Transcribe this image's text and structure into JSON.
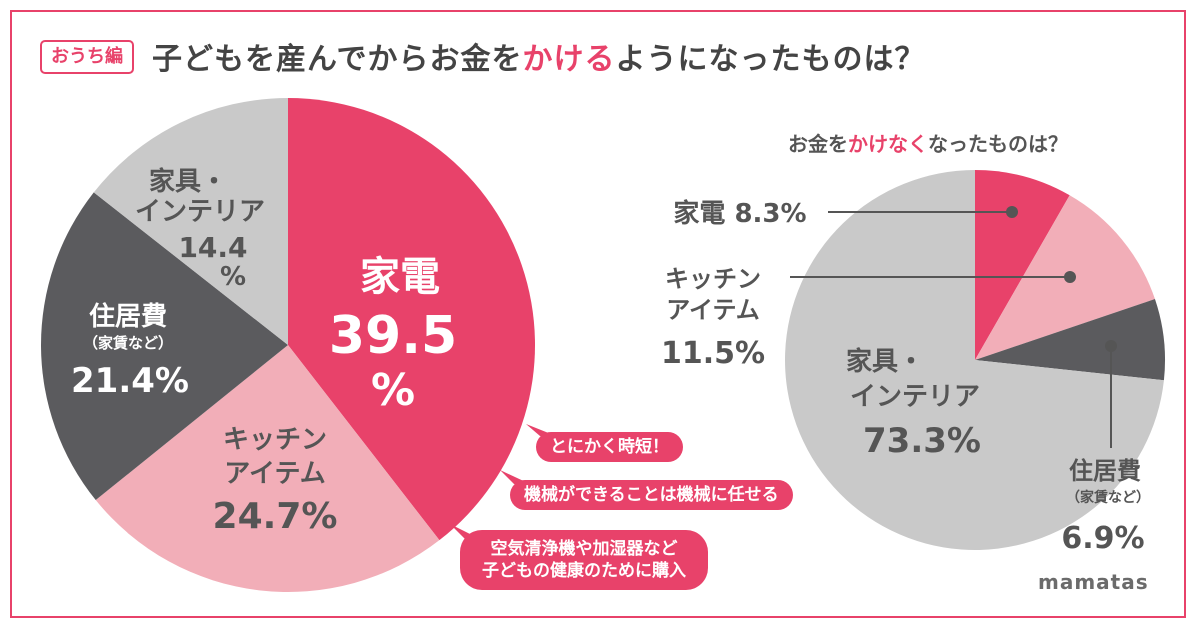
{
  "header": {
    "tag": "おうち編",
    "title_pre": "子どもを産んでからお金を",
    "title_hl": "かける",
    "title_post": "ようになったものは？"
  },
  "subheader": {
    "pre": "お金を",
    "hl": "かけなく",
    "post": "なったものは？"
  },
  "bubbles": {
    "b1": "とにかく時短！",
    "b2": "機械ができることは機械に任せる",
    "b3_line1": "空気清浄機や加湿器など",
    "b3_line2": "子どもの健康のために購入"
  },
  "logo": "mamatas",
  "colors": {
    "pink": "#e8426a",
    "light_pink": "#f2aeb8",
    "dark_gray": "#5b5b5e",
    "light_gray": "#c9c9c9",
    "text_gray": "#555555"
  },
  "chart_data": [
    {
      "type": "pie",
      "title": "子どもを産んでからお金をかけるようになったものは？",
      "start": "top",
      "direction": "clockwise",
      "slices": [
        {
          "label": "家電",
          "value": 39.5,
          "value_label": "39.5",
          "unit": "%",
          "color": "#e8426a"
        },
        {
          "label": "キッチンアイテム",
          "label_lines": [
            "キッチン",
            "アイテム"
          ],
          "value": 24.7,
          "value_label": "24.7%",
          "color": "#f2aeb8"
        },
        {
          "label": "住居費（家賃など）",
          "label_lines": [
            "住居費",
            "（家賃など）"
          ],
          "value": 21.4,
          "value_label": "21.4%",
          "color": "#5b5b5e"
        },
        {
          "label": "家具・インテリア",
          "label_lines": [
            "家具・",
            "インテリア"
          ],
          "value": 14.4,
          "value_label": "14.4",
          "unit": "%",
          "color": "#c9c9c9"
        }
      ]
    },
    {
      "type": "pie",
      "title": "お金をかけなくなったものは？",
      "start": "top",
      "direction": "clockwise",
      "slices": [
        {
          "label": "家電",
          "value": 8.3,
          "value_label": "家電 8.3%",
          "color": "#e8426a"
        },
        {
          "label": "キッチンアイテム",
          "label_lines": [
            "キッチン",
            "アイテム",
            "11.5%"
          ],
          "value": 11.5,
          "color": "#f2aeb8"
        },
        {
          "label": "住居費（家賃など）",
          "label_lines": [
            "住居費",
            "（家賃など）",
            "6.9%"
          ],
          "value": 6.9,
          "color": "#5b5b5e"
        },
        {
          "label": "家具・インテリア",
          "label_lines": [
            "家具・",
            "インテリア",
            "73.3%"
          ],
          "value": 73.3,
          "color": "#c9c9c9"
        }
      ]
    }
  ]
}
